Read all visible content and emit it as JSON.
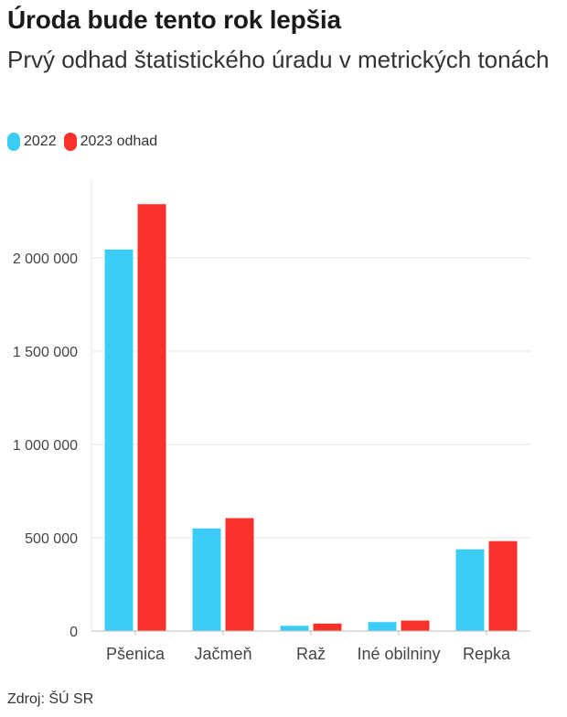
{
  "title": "Úroda bude tento rok lepšia",
  "subtitle": "Prvý odhad štatistického úradu v metrických tonách",
  "source": "Zdroj: ŠÚ SR",
  "colors": {
    "series_2022": "#3ccdf7",
    "series_2023": "#f8312b",
    "grid": "#e6e6e6",
    "axis": "#bdbdbd",
    "tick_text": "#444444"
  },
  "chart_data": {
    "type": "bar",
    "categories": [
      "Pšenica",
      "Jačmeň",
      "Raž",
      "Iné obilniny",
      "Repka"
    ],
    "series": [
      {
        "name": "2022",
        "values": [
          2045000,
          550000,
          28000,
          48000,
          438000
        ]
      },
      {
        "name": "2023 odhad",
        "values": [
          2288000,
          605000,
          40000,
          56000,
          482000
        ]
      }
    ],
    "ylim": [
      0,
      2400000
    ],
    "yticks": [
      0,
      500000,
      1000000,
      1500000,
      2000000
    ],
    "ytick_labels": [
      "0",
      "500 000",
      "1 000 000",
      "1 500 000",
      "2 000 000"
    ],
    "grid": true,
    "legend_position": "top-left"
  }
}
